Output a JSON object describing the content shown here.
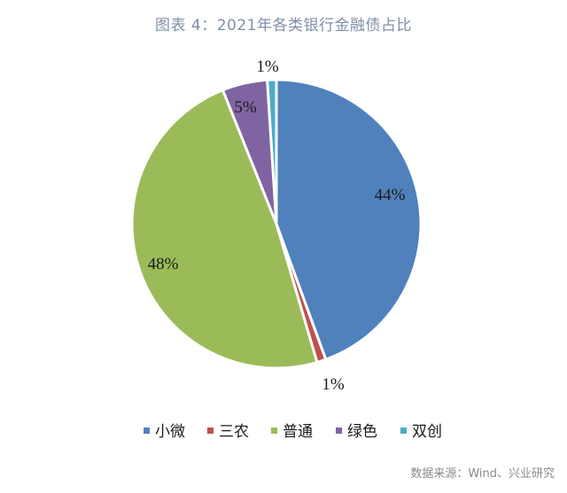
{
  "header": {
    "title": "图表 4：2021年各类银行金融债占比"
  },
  "chart_data": {
    "type": "pie",
    "title": "图表 4：2021年各类银行金融债占比",
    "slices": [
      {
        "name": "小微",
        "value": 44,
        "label": "44%",
        "color": "#4f81bd"
      },
      {
        "name": "三农",
        "value": 1,
        "label": "1%",
        "color": "#c0504d"
      },
      {
        "name": "普通",
        "value": 48,
        "label": "48%",
        "color": "#9bbb59"
      },
      {
        "name": "绿色",
        "value": 5,
        "label": "5%",
        "color": "#8064a2"
      },
      {
        "name": "双创",
        "value": 1,
        "label": "1%",
        "color": "#4bacc6"
      }
    ],
    "legend_position": "bottom"
  },
  "footer": {
    "source": "数据来源：Wind、兴业研究"
  }
}
